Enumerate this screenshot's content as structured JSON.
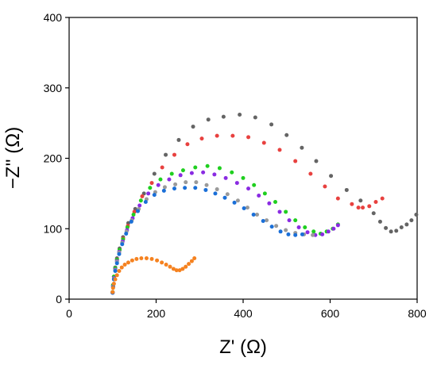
{
  "chart_data": {
    "type": "scatter",
    "title": "",
    "xlabel": "Z' (Ω)",
    "ylabel": "−Z'' (Ω)",
    "xlim": [
      0,
      800
    ],
    "ylim": [
      0,
      400
    ],
    "xticks": [
      0,
      200,
      400,
      600,
      800
    ],
    "yticks": [
      0,
      100,
      200,
      300,
      400
    ],
    "grid": false,
    "legend": "none",
    "series": [
      {
        "color": "#646464",
        "points": [
          [
            100,
            10
          ],
          [
            101,
            20
          ],
          [
            103,
            32
          ],
          [
            106,
            45
          ],
          [
            110,
            58
          ],
          [
            116,
            72
          ],
          [
            124,
            88
          ],
          [
            136,
            108
          ],
          [
            152,
            128
          ],
          [
            172,
            150
          ],
          [
            196,
            178
          ],
          [
            222,
            205
          ],
          [
            252,
            226
          ],
          [
            285,
            245
          ],
          [
            320,
            255
          ],
          [
            355,
            259
          ],
          [
            392,
            262
          ],
          [
            428,
            258
          ],
          [
            465,
            248
          ],
          [
            500,
            233
          ],
          [
            535,
            215
          ],
          [
            568,
            196
          ],
          [
            602,
            175
          ],
          [
            638,
            155
          ],
          [
            670,
            140
          ],
          [
            700,
            122
          ],
          [
            715,
            110
          ],
          [
            728,
            101
          ],
          [
            740,
            96
          ],
          [
            752,
            97
          ],
          [
            764,
            102
          ],
          [
            776,
            106
          ],
          [
            787,
            112
          ],
          [
            798,
            120
          ]
        ]
      },
      {
        "color": "#e8413f",
        "points": [
          [
            100,
            10
          ],
          [
            101,
            20
          ],
          [
            103,
            32
          ],
          [
            106,
            44
          ],
          [
            110,
            56
          ],
          [
            116,
            70
          ],
          [
            124,
            86
          ],
          [
            135,
            104
          ],
          [
            150,
            124
          ],
          [
            168,
            146
          ],
          [
            190,
            165
          ],
          [
            214,
            187
          ],
          [
            242,
            205
          ],
          [
            272,
            220
          ],
          [
            305,
            228
          ],
          [
            340,
            232
          ],
          [
            376,
            232
          ],
          [
            412,
            230
          ],
          [
            448,
            222
          ],
          [
            484,
            212
          ],
          [
            520,
            196
          ],
          [
            555,
            178
          ],
          [
            588,
            160
          ],
          [
            618,
            143
          ],
          [
            650,
            135
          ],
          [
            665,
            130
          ],
          [
            675,
            130
          ],
          [
            690,
            132
          ],
          [
            705,
            138
          ],
          [
            720,
            143
          ]
        ]
      },
      {
        "color": "#1fcf1f",
        "points": [
          [
            100,
            10
          ],
          [
            101,
            20
          ],
          [
            103,
            32
          ],
          [
            106,
            44
          ],
          [
            110,
            56
          ],
          [
            116,
            70
          ],
          [
            124,
            85
          ],
          [
            134,
            102
          ],
          [
            148,
            120
          ],
          [
            165,
            140
          ],
          [
            186,
            158
          ],
          [
            210,
            170
          ],
          [
            236,
            178
          ],
          [
            262,
            183
          ],
          [
            290,
            187
          ],
          [
            318,
            189
          ],
          [
            346,
            186
          ],
          [
            374,
            180
          ],
          [
            400,
            172
          ],
          [
            425,
            162
          ],
          [
            450,
            150
          ],
          [
            474,
            138
          ],
          [
            498,
            124
          ],
          [
            520,
            112
          ],
          [
            542,
            102
          ],
          [
            562,
            96
          ],
          [
            578,
            93
          ],
          [
            592,
            96
          ],
          [
            606,
            100
          ],
          [
            618,
            106
          ]
        ]
      },
      {
        "color": "#8a2be2",
        "points": [
          [
            100,
            9
          ],
          [
            101,
            18
          ],
          [
            103,
            30
          ],
          [
            106,
            42
          ],
          [
            110,
            54
          ],
          [
            115,
            67
          ],
          [
            123,
            82
          ],
          [
            133,
            98
          ],
          [
            146,
            115
          ],
          [
            162,
            133
          ],
          [
            182,
            150
          ],
          [
            205,
            162
          ],
          [
            230,
            170
          ],
          [
            256,
            176
          ],
          [
            282,
            179
          ],
          [
            308,
            180
          ],
          [
            334,
            177
          ],
          [
            360,
            172
          ],
          [
            386,
            165
          ],
          [
            412,
            157
          ],
          [
            436,
            147
          ],
          [
            460,
            136
          ],
          [
            484,
            124
          ],
          [
            506,
            112
          ],
          [
            528,
            102
          ],
          [
            548,
            95
          ],
          [
            566,
            91
          ],
          [
            582,
            92
          ],
          [
            596,
            96
          ],
          [
            608,
            100
          ],
          [
            618,
            105
          ]
        ]
      },
      {
        "color": "#9a9a9a",
        "points": [
          [
            100,
            9
          ],
          [
            101,
            18
          ],
          [
            103,
            29
          ],
          [
            106,
            41
          ],
          [
            110,
            53
          ],
          [
            115,
            66
          ],
          [
            122,
            80
          ],
          [
            132,
            96
          ],
          [
            144,
            112
          ],
          [
            160,
            128
          ],
          [
            178,
            142
          ],
          [
            198,
            152
          ],
          [
            220,
            159
          ],
          [
            244,
            163
          ],
          [
            268,
            166
          ],
          [
            292,
            166
          ],
          [
            316,
            162
          ],
          [
            340,
            156
          ],
          [
            364,
            149
          ],
          [
            388,
            140
          ],
          [
            410,
            130
          ],
          [
            432,
            120
          ],
          [
            454,
            112
          ],
          [
            476,
            104
          ],
          [
            498,
            98
          ],
          [
            520,
            94
          ],
          [
            540,
            92
          ],
          [
            560,
            91
          ]
        ]
      },
      {
        "color": "#1a6fd8",
        "points": [
          [
            100,
            9
          ],
          [
            101,
            17
          ],
          [
            103,
            28
          ],
          [
            106,
            40
          ],
          [
            110,
            51
          ],
          [
            115,
            64
          ],
          [
            122,
            78
          ],
          [
            131,
            93
          ],
          [
            143,
            110
          ],
          [
            158,
            125
          ],
          [
            176,
            138
          ],
          [
            196,
            148
          ],
          [
            218,
            154
          ],
          [
            242,
            157
          ],
          [
            266,
            158
          ],
          [
            290,
            158
          ],
          [
            314,
            155
          ],
          [
            336,
            150
          ],
          [
            358,
            144
          ],
          [
            380,
            137
          ],
          [
            402,
            129
          ],
          [
            424,
            120
          ],
          [
            446,
            111
          ],
          [
            466,
            103
          ],
          [
            486,
            96
          ],
          [
            504,
            92
          ],
          [
            520,
            91
          ],
          [
            536,
            92
          ]
        ]
      },
      {
        "color": "#f58220",
        "points": [
          [
            100,
            10
          ],
          [
            101,
            16
          ],
          [
            103,
            22
          ],
          [
            106,
            28
          ],
          [
            110,
            34
          ],
          [
            115,
            40
          ],
          [
            121,
            45
          ],
          [
            128,
            49
          ],
          [
            136,
            52
          ],
          [
            145,
            55
          ],
          [
            155,
            57
          ],
          [
            166,
            58
          ],
          [
            178,
            58
          ],
          [
            190,
            57
          ],
          [
            202,
            55
          ],
          [
            213,
            52
          ],
          [
            223,
            49
          ],
          [
            232,
            46
          ],
          [
            240,
            43
          ],
          [
            247,
            41
          ],
          [
            254,
            41
          ],
          [
            261,
            43
          ],
          [
            268,
            46
          ],
          [
            275,
            50
          ],
          [
            282,
            54
          ],
          [
            288,
            58
          ]
        ]
      }
    ]
  }
}
